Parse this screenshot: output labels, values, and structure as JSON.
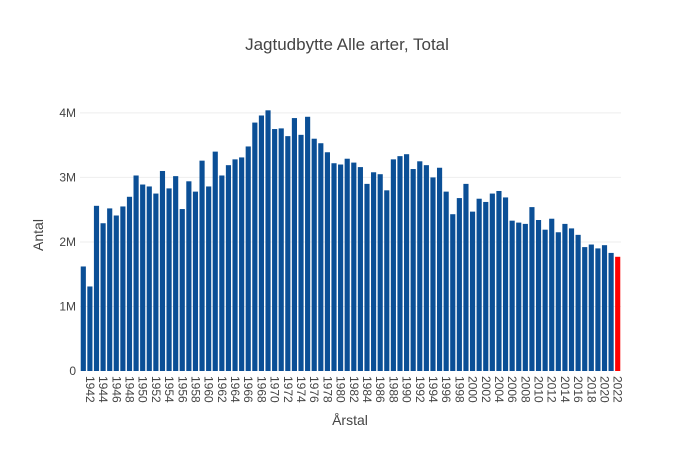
{
  "chart_data": {
    "type": "bar",
    "title": "Jagtudbytte Alle arter, Total",
    "xlabel": "Årstal",
    "ylabel": "Antal",
    "ylim": [
      0,
      4200000
    ],
    "y_ticks": [
      {
        "value": 0,
        "label": "0"
      },
      {
        "value": 1000000,
        "label": "1M"
      },
      {
        "value": 2000000,
        "label": "2M"
      },
      {
        "value": 3000000,
        "label": "3M"
      },
      {
        "value": 4000000,
        "label": "4M"
      }
    ],
    "grid": true,
    "bar_color": "#0b4f96",
    "highlight_color": "#ff0000",
    "highlight_category": "2022",
    "categories": [
      "1941",
      "1942",
      "1943",
      "1944",
      "1945",
      "1946",
      "1947",
      "1948",
      "1949",
      "1950",
      "1951",
      "1952",
      "1953",
      "1954",
      "1955",
      "1956",
      "1957",
      "1958",
      "1959",
      "1960",
      "1961",
      "1962",
      "1963",
      "1964",
      "1965",
      "1966",
      "1967",
      "1968",
      "1969",
      "1970",
      "1971",
      "1972",
      "1973",
      "1974",
      "1975",
      "1976",
      "1977",
      "1978",
      "1979",
      "1980",
      "1981",
      "1982",
      "1983",
      "1984",
      "1985",
      "1986",
      "1987",
      "1988",
      "1989",
      "1990",
      "1991",
      "1992",
      "1993",
      "1994",
      "1995",
      "1996",
      "1997",
      "1998",
      "1999",
      "2000",
      "2001",
      "2002",
      "2003",
      "2004",
      "2005",
      "2006",
      "2007",
      "2008",
      "2009",
      "2010",
      "2011",
      "2012",
      "2013",
      "2014",
      "2015",
      "2016",
      "2017",
      "2018",
      "2019",
      "2020",
      "2021",
      "2022"
    ],
    "values": [
      1620000,
      1310000,
      2560000,
      2290000,
      2520000,
      2410000,
      2550000,
      2700000,
      3030000,
      2890000,
      2860000,
      2750000,
      3100000,
      2830000,
      3020000,
      2510000,
      2940000,
      2780000,
      3260000,
      2860000,
      3400000,
      3030000,
      3190000,
      3280000,
      3310000,
      3480000,
      3850000,
      3960000,
      4040000,
      3750000,
      3760000,
      3640000,
      3920000,
      3660000,
      3940000,
      3600000,
      3530000,
      3390000,
      3220000,
      3200000,
      3290000,
      3230000,
      3160000,
      2900000,
      3080000,
      3050000,
      2800000,
      3280000,
      3330000,
      3360000,
      3130000,
      3250000,
      3190000,
      3000000,
      3150000,
      2780000,
      2430000,
      2680000,
      2900000,
      2470000,
      2670000,
      2620000,
      2750000,
      2790000,
      2690000,
      2330000,
      2300000,
      2280000,
      2540000,
      2340000,
      2190000,
      2360000,
      2150000,
      2280000,
      2210000,
      2110000,
      1920000,
      1960000,
      1900000,
      1950000,
      1830000,
      1770000
    ],
    "x_tick_labels": [
      "1942",
      "1944",
      "1946",
      "1948",
      "1950",
      "1952",
      "1954",
      "1956",
      "1958",
      "1960",
      "1962",
      "1964",
      "1966",
      "1968",
      "1970",
      "1972",
      "1974",
      "1976",
      "1978",
      "1980",
      "1982",
      "1984",
      "1986",
      "1988",
      "1990",
      "1992",
      "1994",
      "1996",
      "1998",
      "2000",
      "2002",
      "2004",
      "2006",
      "2008",
      "2010",
      "2012",
      "2014",
      "2016",
      "2018",
      "2020",
      "2022"
    ]
  }
}
